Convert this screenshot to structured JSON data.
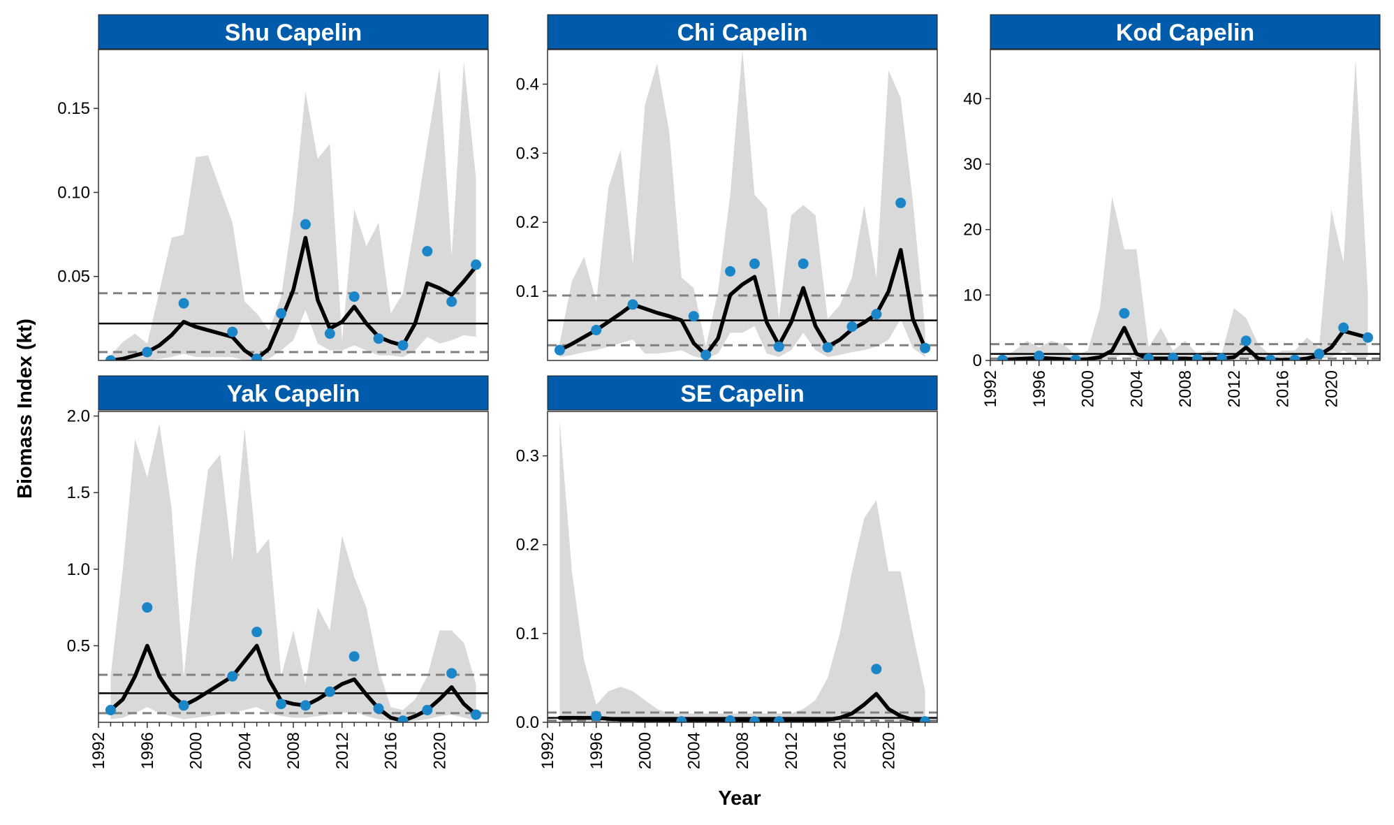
{
  "figure": {
    "ylabel": "Biomass Index (kt)",
    "xlabel": "Year",
    "x_ticks": [
      1992,
      1996,
      2000,
      2004,
      2008,
      2012,
      2016,
      2020
    ],
    "colors": {
      "strip": "#005BAA",
      "band": "#D9D9D9",
      "points": "#1A86C8",
      "line": "#000000",
      "reference": "#808080"
    }
  },
  "chart_data": [
    {
      "type": "line",
      "title": "Shu Capelin",
      "xlim": [
        1992,
        2024
      ],
      "ylim": [
        0,
        0.185
      ],
      "y_ticks": [
        {
          "value": 0.05,
          "label": "0.05"
        },
        {
          "value": 0.1,
          "label": "0.10"
        },
        {
          "value": 0.15,
          "label": "0.15"
        }
      ],
      "observed": {
        "x": [
          1993,
          1996,
          1999,
          2003,
          2005,
          2007,
          2009,
          2011,
          2013,
          2015,
          2017,
          2019,
          2021,
          2023
        ],
        "y": [
          0.0,
          0.005,
          0.034,
          0.017,
          0.001,
          0.028,
          0.081,
          0.016,
          0.038,
          0.013,
          0.009,
          0.065,
          0.035,
          0.057
        ]
      },
      "fit": {
        "x": [
          1993,
          1994,
          1995,
          1996,
          1997,
          1998,
          1999,
          2000,
          2001,
          2002,
          2003,
          2004,
          2005,
          2006,
          2007,
          2008,
          2009,
          2010,
          2011,
          2012,
          2013,
          2014,
          2015,
          2016,
          2017,
          2018,
          2019,
          2020,
          2021,
          2022,
          2023
        ],
        "y": [
          0.0,
          0.001,
          0.003,
          0.005,
          0.009,
          0.015,
          0.023,
          0.02,
          0.018,
          0.016,
          0.014,
          0.006,
          0.001,
          0.007,
          0.024,
          0.042,
          0.073,
          0.036,
          0.019,
          0.023,
          0.032,
          0.022,
          0.014,
          0.011,
          0.009,
          0.022,
          0.046,
          0.043,
          0.039,
          0.047,
          0.056
        ]
      },
      "ci_upper": [
        0.003,
        0.011,
        0.016,
        0.01,
        0.041,
        0.073,
        0.075,
        0.121,
        0.122,
        0.102,
        0.082,
        0.035,
        0.028,
        0.018,
        0.038,
        0.088,
        0.16,
        0.12,
        0.129,
        0.012,
        0.09,
        0.068,
        0.082,
        0.028,
        0.04,
        0.082,
        0.129,
        0.174,
        0.062,
        0.178,
        0.108
      ],
      "ci_lower": [
        0.0,
        0.0,
        0.0,
        0.0,
        0.001,
        0.002,
        0.004,
        0.002,
        0.002,
        0.002,
        0.002,
        0.0,
        0.0,
        0.001,
        0.006,
        0.012,
        0.03,
        0.01,
        0.006,
        0.006,
        0.009,
        0.006,
        0.003,
        0.003,
        0.002,
        0.006,
        0.014,
        0.01,
        0.012,
        0.015,
        0.014
      ],
      "hline_solid": 0.022,
      "hline_dashed": [
        0.005,
        0.04
      ]
    },
    {
      "type": "line",
      "title": "Chi Capelin",
      "xlim": [
        1992,
        2024
      ],
      "ylim": [
        0,
        0.45
      ],
      "y_ticks": [
        {
          "value": 0.1,
          "label": "0.1"
        },
        {
          "value": 0.2,
          "label": "0.2"
        },
        {
          "value": 0.3,
          "label": "0.3"
        },
        {
          "value": 0.4,
          "label": "0.4"
        }
      ],
      "observed": {
        "x": [
          1993,
          1996,
          1999,
          2004,
          2005,
          2007,
          2009,
          2011,
          2013,
          2015,
          2017,
          2019,
          2021,
          2023
        ],
        "y": [
          0.015,
          0.044,
          0.081,
          0.064,
          0.008,
          0.129,
          0.14,
          0.02,
          0.14,
          0.019,
          0.049,
          0.067,
          0.228,
          0.018
        ]
      },
      "fit": {
        "x": [
          1993,
          1994,
          1995,
          1996,
          1997,
          1998,
          1999,
          2000,
          2001,
          2002,
          2003,
          2004,
          2005,
          2006,
          2007,
          2008,
          2009,
          2010,
          2011,
          2012,
          2013,
          2014,
          2015,
          2016,
          2017,
          2018,
          2019,
          2020,
          2021,
          2022,
          2023
        ],
        "y": [
          0.015,
          0.024,
          0.034,
          0.044,
          0.056,
          0.068,
          0.081,
          0.075,
          0.069,
          0.064,
          0.058,
          0.025,
          0.008,
          0.032,
          0.095,
          0.11,
          0.121,
          0.055,
          0.022,
          0.055,
          0.105,
          0.05,
          0.02,
          0.03,
          0.045,
          0.055,
          0.067,
          0.1,
          0.16,
          0.06,
          0.018
        ]
      },
      "ci_upper": [
        0.025,
        0.115,
        0.15,
        0.085,
        0.25,
        0.305,
        0.14,
        0.37,
        0.43,
        0.33,
        0.12,
        0.105,
        0.02,
        0.1,
        0.24,
        0.45,
        0.24,
        0.22,
        0.06,
        0.21,
        0.225,
        0.21,
        0.06,
        0.08,
        0.12,
        0.225,
        0.12,
        0.42,
        0.38,
        0.23,
        0.045
      ],
      "ci_lower": [
        0.005,
        0.008,
        0.012,
        0.015,
        0.02,
        0.025,
        0.03,
        0.01,
        0.01,
        0.012,
        0.015,
        0.006,
        0.002,
        0.01,
        0.04,
        0.04,
        0.05,
        0.01,
        0.005,
        0.015,
        0.04,
        0.015,
        0.005,
        0.008,
        0.012,
        0.015,
        0.02,
        0.03,
        0.06,
        0.018,
        0.005
      ],
      "hline_solid": 0.058,
      "hline_dashed": [
        0.022,
        0.094
      ]
    },
    {
      "type": "line",
      "title": "Kod Capelin",
      "xlim": [
        1992,
        2024
      ],
      "ylim": [
        0,
        47.5
      ],
      "y_ticks": [
        {
          "value": 0,
          "label": "0"
        },
        {
          "value": 10,
          "label": "10"
        },
        {
          "value": 20,
          "label": "20"
        },
        {
          "value": 30,
          "label": "30"
        },
        {
          "value": 40,
          "label": "40"
        }
      ],
      "observed": {
        "x": [
          1993,
          1996,
          1999,
          2003,
          2005,
          2007,
          2009,
          2011,
          2013,
          2015,
          2017,
          2019,
          2021,
          2023
        ],
        "y": [
          0.1,
          0.7,
          0.1,
          7.2,
          0.3,
          0.4,
          0.2,
          0.3,
          3.0,
          0.1,
          0.1,
          1.0,
          5.0,
          3.5
        ]
      },
      "fit": {
        "x": [
          1993,
          1994,
          1995,
          1996,
          1997,
          1998,
          1999,
          2000,
          2001,
          2002,
          2003,
          2004,
          2005,
          2006,
          2007,
          2008,
          2009,
          2010,
          2011,
          2012,
          2013,
          2014,
          2015,
          2016,
          2017,
          2018,
          2019,
          2020,
          2021,
          2022,
          2023
        ],
        "y": [
          0.1,
          0.2,
          0.3,
          0.4,
          0.3,
          0.2,
          0.1,
          0.2,
          0.5,
          1.5,
          5.0,
          1.0,
          0.3,
          0.3,
          0.3,
          0.3,
          0.2,
          0.2,
          0.3,
          0.5,
          2.0,
          0.3,
          0.1,
          0.1,
          0.1,
          0.3,
          0.8,
          2.0,
          4.5,
          4.0,
          3.5
        ]
      },
      "ci_upper": [
        0.5,
        1.5,
        3.0,
        2.0,
        3.0,
        2.5,
        0.8,
        1.5,
        8.0,
        25.0,
        17.0,
        17.0,
        2.0,
        5.0,
        1.5,
        3.0,
        1.0,
        1.5,
        1.0,
        8.0,
        6.5,
        2.5,
        0.8,
        1.5,
        1.5,
        3.5,
        2.0,
        23.0,
        15.0,
        46.0,
        10.0
      ],
      "ci_lower": [
        0.0,
        0.05,
        0.05,
        0.1,
        0.05,
        0.05,
        0.02,
        0.05,
        0.1,
        0.3,
        1.0,
        0.2,
        0.05,
        0.05,
        0.05,
        0.05,
        0.05,
        0.05,
        0.05,
        0.1,
        0.5,
        0.05,
        0.02,
        0.02,
        0.02,
        0.05,
        0.2,
        0.5,
        1.5,
        0.5,
        0.5
      ],
      "hline_solid": 1.0,
      "hline_dashed": [
        0.3,
        2.5
      ]
    },
    {
      "type": "line",
      "title": "Yak Capelin",
      "xlim": [
        1992,
        2024
      ],
      "ylim": [
        0,
        2.03
      ],
      "y_ticks": [
        {
          "value": 0.5,
          "label": "0.5"
        },
        {
          "value": 1.0,
          "label": "1.0"
        },
        {
          "value": 1.5,
          "label": "1.5"
        },
        {
          "value": 2.0,
          "label": "2.0"
        }
      ],
      "observed": {
        "x": [
          1993,
          1996,
          1999,
          2003,
          2005,
          2007,
          2009,
          2011,
          2013,
          2015,
          2017,
          2019,
          2021,
          2023
        ],
        "y": [
          0.08,
          0.75,
          0.11,
          0.3,
          0.59,
          0.12,
          0.11,
          0.2,
          0.43,
          0.09,
          0.01,
          0.08,
          0.32,
          0.05
        ]
      },
      "fit": {
        "x": [
          1993,
          1994,
          1995,
          1996,
          1997,
          1998,
          1999,
          2000,
          2001,
          2002,
          2003,
          2004,
          2005,
          2006,
          2007,
          2008,
          2009,
          2010,
          2011,
          2012,
          2013,
          2014,
          2015,
          2016,
          2017,
          2018,
          2019,
          2020,
          2021,
          2022,
          2023
        ],
        "y": [
          0.08,
          0.15,
          0.3,
          0.5,
          0.3,
          0.18,
          0.11,
          0.15,
          0.2,
          0.25,
          0.3,
          0.4,
          0.5,
          0.28,
          0.14,
          0.12,
          0.11,
          0.15,
          0.2,
          0.25,
          0.28,
          0.18,
          0.09,
          0.03,
          0.01,
          0.04,
          0.08,
          0.15,
          0.23,
          0.12,
          0.05
        ]
      },
      "ci_upper": [
        0.3,
        1.0,
        1.85,
        1.6,
        1.95,
        1.4,
        0.3,
        1.05,
        1.65,
        1.75,
        1.05,
        1.92,
        1.1,
        1.2,
        0.3,
        0.6,
        0.25,
        0.75,
        0.6,
        1.22,
        0.95,
        0.75,
        0.35,
        0.1,
        0.08,
        0.15,
        0.3,
        0.6,
        0.6,
        0.52,
        0.25
      ],
      "ci_lower": [
        0.02,
        0.03,
        0.06,
        0.1,
        0.06,
        0.04,
        0.02,
        0.03,
        0.04,
        0.05,
        0.06,
        0.08,
        0.1,
        0.06,
        0.04,
        0.03,
        0.03,
        0.04,
        0.05,
        0.06,
        0.07,
        0.04,
        0.02,
        0.01,
        0.0,
        0.01,
        0.02,
        0.04,
        0.05,
        0.03,
        0.01
      ],
      "hline_solid": 0.19,
      "hline_dashed": [
        0.06,
        0.31
      ]
    },
    {
      "type": "line",
      "title": "SE Capelin",
      "xlim": [
        1992,
        2024
      ],
      "ylim": [
        0,
        0.35
      ],
      "y_ticks": [
        {
          "value": 0.0,
          "label": "0.0"
        },
        {
          "value": 0.1,
          "label": "0.1"
        },
        {
          "value": 0.2,
          "label": "0.2"
        },
        {
          "value": 0.3,
          "label": "0.3"
        }
      ],
      "observed": {
        "x": [
          1996,
          2003,
          2007,
          2009,
          2011,
          2019,
          2023
        ],
        "y": [
          0.007,
          0.001,
          0.002,
          0.001,
          0.001,
          0.06,
          0.001
        ]
      },
      "fit": {
        "x": [
          1993,
          1994,
          1995,
          1996,
          1997,
          1998,
          1999,
          2000,
          2001,
          2002,
          2003,
          2004,
          2005,
          2006,
          2007,
          2008,
          2009,
          2010,
          2011,
          2012,
          2013,
          2014,
          2015,
          2016,
          2017,
          2018,
          2019,
          2020,
          2021,
          2022,
          2023
        ],
        "y": [
          0.005,
          0.005,
          0.005,
          0.005,
          0.004,
          0.003,
          0.003,
          0.002,
          0.002,
          0.002,
          0.002,
          0.002,
          0.002,
          0.002,
          0.002,
          0.002,
          0.002,
          0.002,
          0.002,
          0.002,
          0.002,
          0.002,
          0.003,
          0.005,
          0.01,
          0.02,
          0.032,
          0.015,
          0.007,
          0.003,
          0.001
        ]
      },
      "ci_upper": [
        0.34,
        0.17,
        0.07,
        0.02,
        0.035,
        0.04,
        0.035,
        0.025,
        0.015,
        0.01,
        0.01,
        0.01,
        0.01,
        0.01,
        0.01,
        0.01,
        0.01,
        0.01,
        0.01,
        0.01,
        0.015,
        0.025,
        0.05,
        0.1,
        0.17,
        0.23,
        0.25,
        0.17,
        0.17,
        0.1,
        0.035
      ],
      "ci_lower": [
        0.0,
        0.0,
        0.0,
        0.0,
        0.0,
        0.0,
        0.0,
        0.0,
        0.0,
        0.0,
        0.0,
        0.0,
        0.0,
        0.0,
        0.0,
        0.0,
        0.0,
        0.0,
        0.0,
        0.0,
        0.0,
        0.0,
        0.0,
        0.0,
        0.001,
        0.002,
        0.004,
        0.001,
        0.0,
        0.0,
        0.0
      ],
      "hline_solid": 0.005,
      "hline_dashed": [
        0.002,
        0.011
      ]
    }
  ]
}
